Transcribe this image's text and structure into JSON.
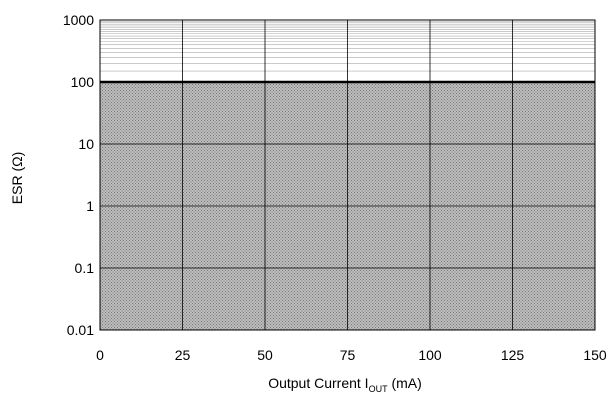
{
  "chart_data": {
    "type": "area",
    "x_axis": {
      "label_main": "Output Current I",
      "label_sub": "OUT",
      "label_suffix": " (mA)",
      "range": [
        0,
        150
      ],
      "ticks": [
        0,
        25,
        50,
        75,
        100,
        125,
        150
      ],
      "tick_labels": [
        "0",
        "25",
        "50",
        "75",
        "100",
        "125",
        "150"
      ]
    },
    "y_axis": {
      "label": "ESR (Ω)",
      "scale": "log",
      "range": [
        0.01,
        1000
      ],
      "ticks": [
        0.01,
        0.1,
        1,
        10,
        100,
        1000
      ],
      "tick_labels": [
        "0.01",
        "0.1",
        "1",
        "10",
        "100",
        "1000"
      ]
    },
    "grid": true,
    "minor_grid_top_decade": true,
    "region": {
      "description": "stable region (shaded)",
      "x": [
        0,
        150
      ],
      "y": [
        0.01,
        100
      ]
    },
    "boundary": {
      "y": 100,
      "x": [
        0,
        150
      ]
    },
    "colors": {
      "region_fill": "#bdbdbd",
      "region_dots": "#7a7a7a",
      "grid": "#000000",
      "minor_grid": "#aaaaaa"
    }
  }
}
